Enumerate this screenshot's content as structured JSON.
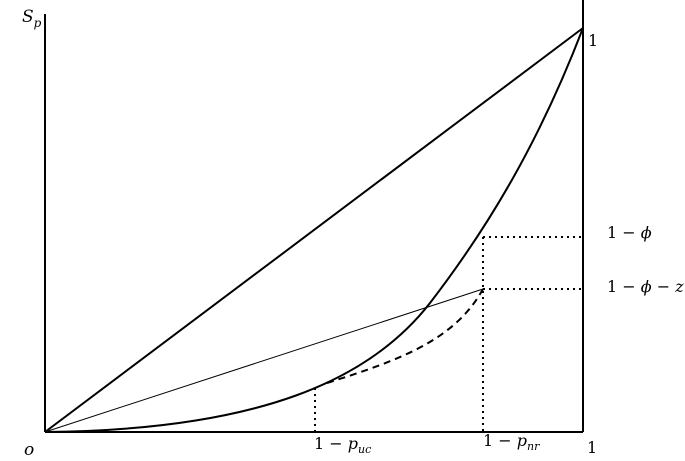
{
  "labels": {
    "y_axis": "S",
    "y_axis_sub": "p",
    "origin": "o",
    "x_end": "1",
    "top_right": "1",
    "x_tick_uc_prefix": "1 − ",
    "x_tick_uc_var": "p",
    "x_tick_uc_sub": "uc",
    "x_tick_nr_prefix": "1 − ",
    "x_tick_nr_var": "p",
    "x_tick_nr_sub": "nr",
    "y_tick_phi_prefix": "1 − ",
    "y_tick_phi_var": "ϕ",
    "y_tick_phiz_prefix": "1 − ",
    "y_tick_phiz_var": "ϕ",
    "y_tick_phiz_mid": " − ",
    "y_tick_phiz_z": "z"
  },
  "colors": {
    "ink": "#000000",
    "background": "#ffffff"
  }
}
